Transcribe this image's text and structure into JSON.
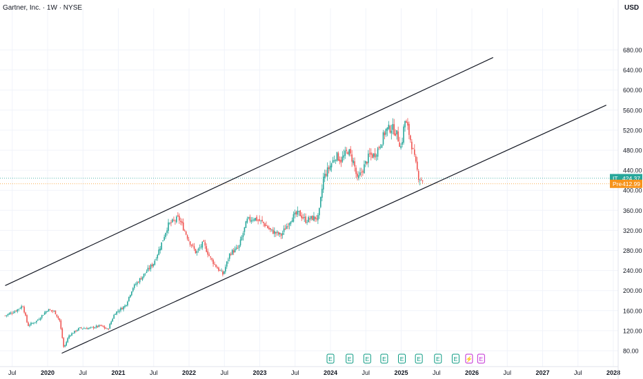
{
  "header": {
    "title": "Gartner, Inc. · 1W · NYSE",
    "currency": "USD"
  },
  "price_labels": {
    "it": {
      "tag": "IT",
      "value": "424.37",
      "color": "#26a69a"
    },
    "pre": {
      "tag": "Pre",
      "value": "412.99",
      "color": "#f7931a"
    }
  },
  "event_markers": [
    {
      "label": "E",
      "year": 2024.0
    },
    {
      "label": "E",
      "year": 2024.27
    },
    {
      "label": "E",
      "year": 2024.52
    },
    {
      "label": "E",
      "year": 2024.76
    },
    {
      "label": "E",
      "year": 2025.01
    },
    {
      "label": "E",
      "year": 2025.25
    },
    {
      "label": "E",
      "year": 2025.52
    },
    {
      "label": "E",
      "year": 2025.77
    },
    {
      "label": "⚡",
      "year": 2025.96
    },
    {
      "label": "E",
      "year": 2026.13
    }
  ],
  "colors": {
    "up": "#26a69a",
    "down": "#ef5350",
    "grid": "#f0f3fa",
    "channel": "#131722"
  },
  "chart_data": {
    "type": "candlestick",
    "interval": "1W",
    "symbol": "IT",
    "exchange": "NYSE",
    "x_ticks": [
      "Jul",
      "2020",
      "Jul",
      "2021",
      "Jul",
      "2022",
      "Jul",
      "2023",
      "Jul",
      "2024",
      "Jul",
      "2025",
      "Jul",
      "2026",
      "Jul",
      "2027",
      "Jul",
      "2028"
    ],
    "y_ticks": [
      "80.00",
      "120.00",
      "160.00",
      "200.00",
      "240.00",
      "280.00",
      "320.00",
      "360.00",
      "400.00",
      "440.00",
      "480.00",
      "520.00",
      "560.00",
      "600.00",
      "640.00",
      "680.00"
    ],
    "ylim": [
      55,
      720
    ],
    "xlim": [
      2019.4,
      2028.0
    ],
    "last_price": 424.37,
    "premarket_price": 412.99,
    "price_points": [
      {
        "t": 2019.4,
        "p": 150
      },
      {
        "t": 2019.55,
        "p": 160
      },
      {
        "t": 2019.65,
        "p": 170
      },
      {
        "t": 2019.72,
        "p": 130
      },
      {
        "t": 2019.85,
        "p": 140
      },
      {
        "t": 2020.0,
        "p": 162
      },
      {
        "t": 2020.1,
        "p": 158
      },
      {
        "t": 2020.17,
        "p": 140
      },
      {
        "t": 2020.23,
        "p": 85
      },
      {
        "t": 2020.3,
        "p": 110
      },
      {
        "t": 2020.45,
        "p": 125
      },
      {
        "t": 2020.6,
        "p": 125
      },
      {
        "t": 2020.75,
        "p": 130
      },
      {
        "t": 2020.85,
        "p": 122
      },
      {
        "t": 2020.95,
        "p": 155
      },
      {
        "t": 2021.1,
        "p": 170
      },
      {
        "t": 2021.2,
        "p": 205
      },
      {
        "t": 2021.35,
        "p": 230
      },
      {
        "t": 2021.5,
        "p": 255
      },
      {
        "t": 2021.6,
        "p": 290
      },
      {
        "t": 2021.7,
        "p": 330
      },
      {
        "t": 2021.85,
        "p": 345
      },
      {
        "t": 2021.92,
        "p": 325
      },
      {
        "t": 2022.0,
        "p": 300
      },
      {
        "t": 2022.1,
        "p": 275
      },
      {
        "t": 2022.2,
        "p": 295
      },
      {
        "t": 2022.3,
        "p": 265
      },
      {
        "t": 2022.4,
        "p": 245
      },
      {
        "t": 2022.48,
        "p": 232
      },
      {
        "t": 2022.58,
        "p": 275
      },
      {
        "t": 2022.7,
        "p": 285
      },
      {
        "t": 2022.82,
        "p": 340
      },
      {
        "t": 2022.92,
        "p": 345
      },
      {
        "t": 2023.05,
        "p": 335
      },
      {
        "t": 2023.15,
        "p": 320
      },
      {
        "t": 2023.3,
        "p": 310
      },
      {
        "t": 2023.45,
        "p": 345
      },
      {
        "t": 2023.55,
        "p": 355
      },
      {
        "t": 2023.65,
        "p": 340
      },
      {
        "t": 2023.75,
        "p": 345
      },
      {
        "t": 2023.83,
        "p": 345
      },
      {
        "t": 2023.9,
        "p": 425
      },
      {
        "t": 2024.0,
        "p": 450
      },
      {
        "t": 2024.08,
        "p": 470
      },
      {
        "t": 2024.15,
        "p": 460
      },
      {
        "t": 2024.25,
        "p": 480
      },
      {
        "t": 2024.33,
        "p": 455
      },
      {
        "t": 2024.38,
        "p": 420
      },
      {
        "t": 2024.45,
        "p": 440
      },
      {
        "t": 2024.55,
        "p": 470
      },
      {
        "t": 2024.62,
        "p": 470
      },
      {
        "t": 2024.7,
        "p": 490
      },
      {
        "t": 2024.78,
        "p": 520
      },
      {
        "t": 2024.87,
        "p": 525
      },
      {
        "t": 2024.93,
        "p": 515
      },
      {
        "t": 2025.0,
        "p": 485
      },
      {
        "t": 2025.05,
        "p": 540
      },
      {
        "t": 2025.1,
        "p": 520
      },
      {
        "t": 2025.15,
        "p": 490
      },
      {
        "t": 2025.2,
        "p": 455
      },
      {
        "t": 2025.25,
        "p": 425
      },
      {
        "t": 2025.32,
        "p": 420
      }
    ],
    "channel_lines": [
      {
        "name": "upper",
        "from": {
          "t": 2019.4,
          "p": 210
        },
        "to": {
          "t": 2026.3,
          "p": 665
        }
      },
      {
        "name": "lower",
        "from": {
          "t": 2020.2,
          "p": 75
        },
        "to": {
          "t": 2027.9,
          "p": 570
        }
      }
    ],
    "title": "Gartner, Inc. · 1W · NYSE",
    "legend": "none",
    "grid": true
  }
}
